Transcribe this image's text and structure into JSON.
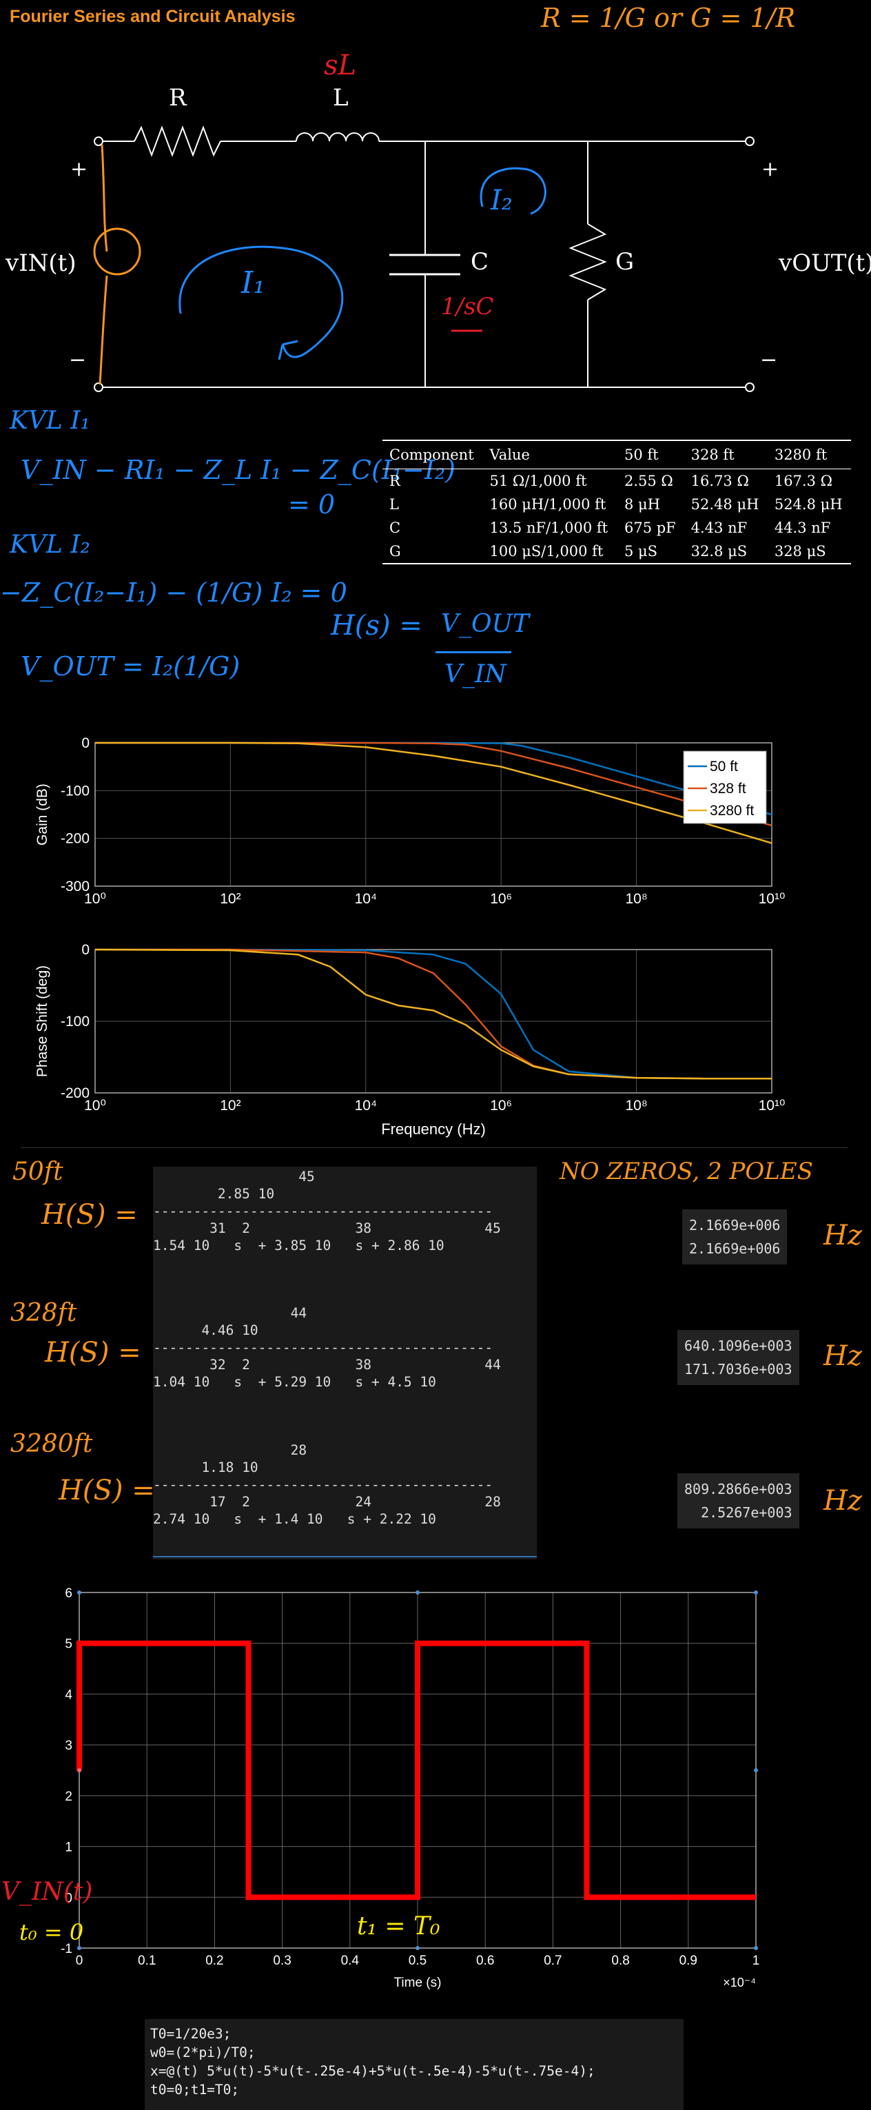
{
  "title": "Fourier Series and Circuit Analysis",
  "annotations": {
    "rc_note": "R = 1/G or G = 1/R",
    "sL": "sL",
    "one_over_sC": "1/sC",
    "I1": "I₁",
    "I2": "I₂",
    "kvl1_label": "KVL I₁",
    "kvl1_eq": "V_IN − RI₁ − Z_L I₁ − Z_C(I₁−I₂)",
    "kvl1_eq2": "= 0",
    "kvl2_label": "KVL I₂",
    "kvl2_eq": "−Z_C(I₂−I₁) − (1/G) I₂ = 0",
    "vout_eq": "V_OUT = I₂(1/G)",
    "h_eq_lhs": "H(s) =",
    "h_eq_num": "V_OUT",
    "h_eq_den": "V_IN",
    "label_50ft": "50ft",
    "label_328ft": "328ft",
    "label_3280ft": "3280ft",
    "hs": "H(S) =",
    "no_zeros": "NO ZEROS, 2 POLES",
    "hz": "Hz",
    "vin_t": "V_IN(t)",
    "t0": "t₀ = 0",
    "t1": "t₁ = T₀"
  },
  "circuit": {
    "R": "R",
    "L": "L",
    "C": "C",
    "G": "G",
    "vin": "vIN(t)",
    "vout": "vOUT(t)",
    "plus": "+",
    "minus": "−"
  },
  "component_table": {
    "headers": [
      "Component",
      "Value",
      "50 ft",
      "328 ft",
      "3280 ft"
    ],
    "rows": [
      [
        "R",
        "51 Ω/1,000 ft",
        "2.55 Ω",
        "16.73 Ω",
        "167.3 Ω"
      ],
      [
        "L",
        "160 μH/1,000 ft",
        "8 μH",
        "52.48 μH",
        "524.8 μH"
      ],
      [
        "C",
        "13.5 nF/1,000 ft",
        "675 pF",
        "4.43 nF",
        "44.3 nF"
      ],
      [
        "G",
        "100 μS/1,000 ft",
        "5 μS",
        "32.8 μS",
        "328 μS"
      ]
    ]
  },
  "transfer_functions": [
    {
      "display": "                  45\n        2.85 10\n------------------------------------------\n       31  2             38              45\n1.54 10   s  + 3.85 10   s + 2.86 10",
      "roots": "2.1669e+006\n2.1669e+006"
    },
    {
      "display": "                 44\n      4.46 10\n------------------------------------------\n       32  2             38              44\n1.04 10   s  + 5.29 10   s + 4.5 10",
      "roots": "640.1096e+003\n171.7036e+003"
    },
    {
      "display": "                 28\n      1.18 10\n------------------------------------------\n       17  2             24              28\n2.74 10   s  + 1.4 10   s + 2.22 10",
      "roots": "809.2866e+003\n  2.5267e+003"
    }
  ],
  "code_lines": [
    "T0=1/20e3;",
    "w0=(2*pi)/T0;",
    "x=@(t) 5*u(t)-5*u(t-.25e-4)+5*u(t-.5e-4)-5*u(t-.75e-4);",
    "t0=0;t1=T0;"
  ],
  "chart_data": [
    {
      "type": "line",
      "xscale": "log",
      "xlim": [
        1,
        10000000000
      ],
      "ylim": [
        -300,
        0
      ],
      "ylabel": "Gain (dB)",
      "xticks": [
        "10⁰",
        "10²",
        "10⁴",
        "10⁶",
        "10⁸",
        "10¹⁰"
      ],
      "yticks": [
        "0",
        "-100",
        "-200",
        "-300"
      ],
      "grid": true,
      "legend": "top-right",
      "series": [
        {
          "name": "50 ft",
          "color": "#0072bd",
          "x": [
            1,
            100,
            10000,
            100000,
            1000000,
            2000000,
            10000000,
            100000000,
            1000000000,
            10000000000
          ],
          "y": [
            0,
            0,
            0,
            0,
            -1,
            -6,
            -30,
            -70,
            -110,
            -150
          ]
        },
        {
          "name": "328 ft",
          "color": "#d95319",
          "x": [
            1,
            100,
            10000,
            100000,
            300000,
            1000000,
            10000000,
            100000000,
            1000000000,
            10000000000
          ],
          "y": [
            0,
            0,
            0,
            -1,
            -4,
            -17,
            -53,
            -93,
            -133,
            -173
          ]
        },
        {
          "name": "3280 ft",
          "color": "#edb120",
          "x": [
            1,
            100,
            1000,
            10000,
            100000,
            1000000,
            10000000,
            100000000,
            1000000000,
            10000000000
          ],
          "y": [
            0,
            0,
            -1,
            -9,
            -27,
            -50,
            -88,
            -128,
            -168,
            -210
          ]
        }
      ]
    },
    {
      "type": "line",
      "xscale": "log",
      "xlim": [
        1,
        10000000000
      ],
      "ylim": [
        -200,
        0
      ],
      "ylabel": "Phase Shift (deg)",
      "xlabel": "Frequency (Hz)",
      "xticks": [
        "10⁰",
        "10²",
        "10⁴",
        "10⁶",
        "10⁸",
        "10¹⁰"
      ],
      "yticks": [
        "0",
        "-100",
        "-200"
      ],
      "grid": true,
      "series": [
        {
          "name": "50 ft",
          "color": "#0072bd",
          "x": [
            1,
            100,
            10000,
            100000,
            300000,
            1000000,
            3000000,
            10000000,
            100000000,
            1000000000,
            10000000000
          ],
          "y": [
            0,
            0,
            -1,
            -7,
            -20,
            -62,
            -140,
            -170,
            -179,
            -180,
            -180
          ]
        },
        {
          "name": "328 ft",
          "color": "#d95319",
          "x": [
            1,
            100,
            10000,
            30000,
            100000,
            300000,
            1000000,
            3000000,
            10000000,
            100000000,
            1000000000,
            10000000000
          ],
          "y": [
            0,
            0,
            -4,
            -12,
            -33,
            -77,
            -135,
            -162,
            -174,
            -179,
            -180,
            -180
          ]
        },
        {
          "name": "3280 ft",
          "color": "#edb120",
          "x": [
            1,
            100,
            1000,
            3000,
            10000,
            30000,
            100000,
            300000,
            1000000,
            3000000,
            10000000,
            100000000,
            1000000000,
            10000000000
          ],
          "y": [
            0,
            -1,
            -7,
            -24,
            -63,
            -78,
            -85,
            -105,
            -140,
            -163,
            -174,
            -179,
            -180,
            -180
          ]
        }
      ]
    },
    {
      "type": "line",
      "xlim": [
        0,
        1
      ],
      "ylim": [
        -1,
        6
      ],
      "xlabel": "Time (s)",
      "x_multiplier": "×10⁻⁴",
      "xticks": [
        "0",
        "0.1",
        "0.2",
        "0.3",
        "0.4",
        "0.5",
        "0.6",
        "0.7",
        "0.8",
        "0.9",
        "1"
      ],
      "yticks": [
        "6",
        "5",
        "4",
        "3",
        "2",
        "1",
        "0",
        "-1"
      ],
      "grid": true,
      "series": [
        {
          "color": "#ff0000",
          "x": [
            0,
            0,
            0.25,
            0.25,
            0.5,
            0.5,
            0.75,
            0.75,
            1
          ],
          "y": [
            2.5,
            5,
            5,
            0,
            0,
            5,
            5,
            0,
            0
          ]
        }
      ]
    }
  ]
}
